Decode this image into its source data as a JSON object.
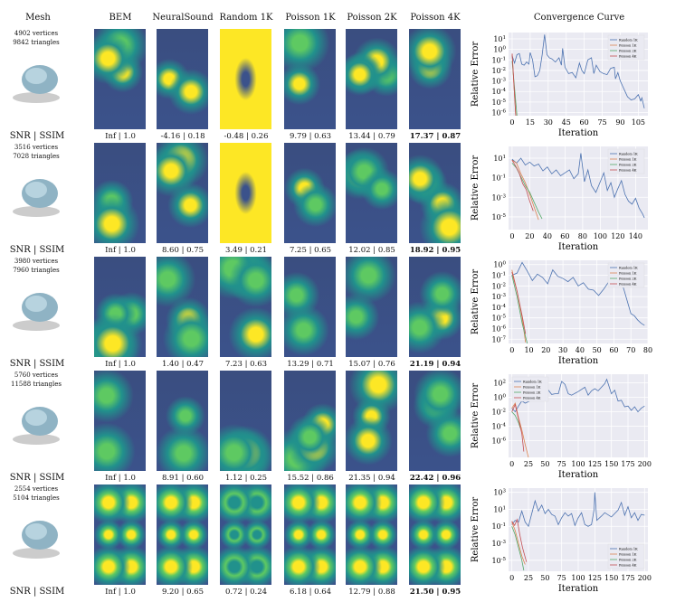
{
  "headers": {
    "mesh": "Mesh",
    "columns": [
      "BEM",
      "NeuralSound",
      "Random 1K",
      "Poisson 1K",
      "Poisson 2K",
      "Poisson 4K"
    ],
    "curve": "Convergence Curve"
  },
  "metric_label": "SNR | SSIM",
  "rows": [
    {
      "vertices": "4902 vertices",
      "triangles": "9842 triangles",
      "metrics": [
        "Inf | 1.0",
        "-4.16 | 0.18",
        "-0.48 | 0.26",
        "9.79 | 0.63",
        "13.44 | 0.79",
        "17.37 | 0.87"
      ]
    },
    {
      "vertices": "3516 vertices",
      "triangles": "7028 triangles",
      "metrics": [
        "Inf | 1.0",
        "8.60 | 0.75",
        "3.49 | 0.21",
        "7.25 | 0.65",
        "12.02 | 0.85",
        "18.92 | 0.95"
      ]
    },
    {
      "vertices": "3980 vertices",
      "triangles": "7960 triangles",
      "metrics": [
        "Inf | 1.0",
        "1.40 | 0.47",
        "7.23 | 0.63",
        "13.29 | 0.71",
        "15.07 | 0.76",
        "21.19 | 0.94"
      ]
    },
    {
      "vertices": "5760 vertices",
      "triangles": "11588 triangles",
      "metrics": [
        "Inf | 1.0",
        "8.91 | 0.60",
        "1.12 | 0.25",
        "15.52 | 0.86",
        "21.35 | 0.94",
        "22.42 | 0.96"
      ]
    },
    {
      "vertices": "2554 vertices",
      "triangles": "5104 triangles",
      "metrics": [
        "Inf | 1.0",
        "9.20 | 0.65",
        "0.72 | 0.24",
        "6.18 | 0.64",
        "12.79 | 0.88",
        "21.50 | 0.95"
      ]
    }
  ],
  "colors": {
    "random": "#4c72b0",
    "p1k": "#dd8452",
    "p2k": "#55a868",
    "p4k": "#c44e52",
    "plot_bg": "#eaeaf2"
  },
  "chart_data": [
    {
      "type": "line",
      "xlabel": "Iteration",
      "ylabel": "Relative Error",
      "yscale": "log",
      "legend": "top-right",
      "xticks": [
        0,
        15,
        30,
        45,
        60,
        75,
        90,
        105
      ],
      "xlim": [
        -3,
        113
      ],
      "yticks": [
        1,
        0,
        -1,
        -2,
        -3,
        -4,
        -5,
        -6
      ],
      "ylim_log10": [
        -6.3,
        1.6
      ],
      "series": [
        {
          "name": "Random 1K",
          "x": [
            0,
            2,
            4,
            6,
            8,
            10,
            12,
            14,
            15,
            17,
            19,
            21,
            23,
            25,
            27,
            29,
            31,
            33,
            36,
            39,
            41,
            42,
            44,
            47,
            50,
            53,
            56,
            58,
            60,
            63,
            66,
            68,
            70,
            73,
            76,
            79,
            82,
            85,
            86,
            88,
            90,
            92,
            94,
            96,
            99,
            102,
            105,
            107,
            108,
            110
          ],
          "y": [
            -0.6,
            -1.3,
            -0.5,
            -0.4,
            -1.4,
            -1.5,
            -1.2,
            -1.4,
            -0.3,
            -1,
            -2.6,
            -2.5,
            -2,
            -0.5,
            1.4,
            -0.5,
            -0.8,
            -0.9,
            -1.2,
            -0.8,
            -1.5,
            0.1,
            -1.7,
            -2.3,
            -2.2,
            -2.7,
            -1.3,
            -2,
            -2.3,
            -1,
            -0.8,
            -2.3,
            -1.5,
            -2.1,
            -2.3,
            -2.4,
            -1.8,
            -1.7,
            -2.8,
            -2.2,
            -3,
            -3.5,
            -4,
            -4.5,
            -4.8,
            -4.7,
            -4.3,
            -4.9,
            -4.6,
            -5.6
          ]
        },
        {
          "name": "Poisson 1K",
          "x": [
            0,
            3
          ],
          "y": [
            -0.5,
            -6.3
          ]
        },
        {
          "name": "Poisson 2K",
          "x": [
            0,
            4
          ],
          "y": [
            -1.1,
            -6.3
          ]
        },
        {
          "name": "Poisson 4K",
          "x": [
            0,
            3
          ],
          "y": [
            -0.4,
            -6.3
          ]
        }
      ]
    },
    {
      "type": "line",
      "xlabel": "Iteration",
      "ylabel": "Relative Error",
      "yscale": "log",
      "legend": "top-right",
      "xticks": [
        0,
        20,
        40,
        60,
        80,
        100,
        120,
        140
      ],
      "xlim": [
        -4,
        154
      ],
      "yticks": [
        1,
        -1,
        -3,
        -5
      ],
      "ylim_log10": [
        -6.3,
        2.2
      ],
      "series": [
        {
          "name": "Random 1K",
          "x": [
            0,
            5,
            10,
            15,
            20,
            25,
            30,
            35,
            40,
            45,
            50,
            55,
            60,
            65,
            70,
            75,
            78,
            82,
            86,
            90,
            95,
            100,
            104,
            108,
            112,
            116,
            120,
            124,
            128,
            132,
            136,
            140,
            144,
            148,
            150
          ],
          "y": [
            0.9,
            0.5,
            1,
            0.3,
            0.6,
            0.2,
            0.4,
            -0.3,
            0.1,
            -0.6,
            -0.2,
            -0.8,
            -0.5,
            -0.2,
            -1.1,
            -0.6,
            1.5,
            -1.4,
            -0.2,
            -1.8,
            -2.5,
            -1.4,
            -0.5,
            -2.3,
            -1.5,
            -3,
            -2.1,
            -1.3,
            -2.7,
            -3.4,
            -3.7,
            -3.1,
            -4.1,
            -4.7,
            -5.1
          ]
        },
        {
          "name": "Poisson 1K",
          "x": [
            0,
            5,
            10,
            15,
            20,
            25,
            30
          ],
          "y": [
            0.8,
            0.5,
            -0.6,
            -1.5,
            -2.7,
            -4,
            -5.3
          ]
        },
        {
          "name": "Poisson 2K",
          "x": [
            0,
            5,
            10,
            15,
            20,
            25,
            30,
            34
          ],
          "y": [
            0.5,
            0,
            -0.9,
            -1.8,
            -2.5,
            -3.5,
            -4.5,
            -5.2
          ]
        },
        {
          "name": "Poisson 4K",
          "x": [
            0,
            4,
            8,
            12,
            16,
            20,
            24
          ],
          "y": [
            0.8,
            0.2,
            -0.5,
            -1.6,
            -2.2,
            -3.4,
            -4.4
          ]
        }
      ]
    },
    {
      "type": "line",
      "xlabel": "Iteration",
      "ylabel": "Relative Error",
      "yscale": "log",
      "legend": "top-right",
      "xticks": [
        0,
        10,
        20,
        30,
        40,
        50,
        60,
        70,
        80
      ],
      "xlim": [
        -2,
        80
      ],
      "yticks": [
        0,
        -1,
        -2,
        -3,
        -4,
        -5,
        -6,
        -7
      ],
      "ylim_log10": [
        -7.4,
        0.4
      ],
      "series": [
        {
          "name": "Random 1K",
          "x": [
            0,
            3,
            6,
            9,
            12,
            15,
            18,
            21,
            24,
            27,
            30,
            33,
            36,
            39,
            42,
            45,
            48,
            51,
            54,
            57,
            60,
            62,
            64,
            66,
            68,
            70,
            72,
            74,
            76,
            78
          ],
          "y": [
            -1,
            -0.8,
            0.2,
            -0.6,
            -1.5,
            -0.9,
            -1.2,
            -1.8,
            -0.5,
            -1.1,
            -1.3,
            -1.6,
            -1.2,
            -2,
            -1.7,
            -2.3,
            -2.4,
            -2.9,
            -2.3,
            -1.6,
            -1.2,
            -1.9,
            -1.4,
            -2.4,
            -3.5,
            -4.6,
            -4.8,
            -5.2,
            -5.5,
            -5.7
          ]
        },
        {
          "name": "Poisson 1K",
          "x": [
            0,
            3,
            6,
            8
          ],
          "y": [
            -0.5,
            -2.5,
            -5,
            -7.3
          ]
        },
        {
          "name": "Poisson 2K",
          "x": [
            0,
            3,
            6,
            9
          ],
          "y": [
            -1,
            -3,
            -5.5,
            -7.4
          ]
        },
        {
          "name": "Poisson 4K",
          "x": [
            0,
            3,
            6,
            8
          ],
          "y": [
            -0.7,
            -2.5,
            -4.8,
            -6.5
          ]
        }
      ]
    },
    {
      "type": "line",
      "xlabel": "Iteration",
      "ylabel": "Relative Error",
      "yscale": "log",
      "legend": "top-left",
      "xticks": [
        0,
        25,
        50,
        75,
        100,
        125,
        150,
        175,
        200
      ],
      "xlim": [
        -5,
        205
      ],
      "yticks": [
        2,
        0,
        -2,
        -4,
        -6
      ],
      "ylim_log10": [
        -8.3,
        3.2
      ],
      "series": [
        {
          "name": "Random 1K",
          "x": [
            0,
            5,
            10,
            15,
            20,
            25,
            30,
            40,
            50,
            55,
            60,
            65,
            70,
            75,
            80,
            85,
            90,
            100,
            110,
            115,
            120,
            125,
            130,
            140,
            143,
            150,
            155,
            160,
            165,
            170,
            175,
            180,
            185,
            190,
            195,
            200
          ],
          "y": [
            -1.5,
            -2,
            -1.2,
            -0.5,
            -0.8,
            -0.6,
            -0.3,
            -0.5,
            -0.2,
            1,
            0.4,
            0.5,
            0.5,
            2.2,
            1.8,
            0.5,
            0.3,
            0.8,
            1.4,
            0.3,
            0.9,
            1.2,
            0.9,
            1.9,
            2.5,
            0.5,
            1,
            -0.5,
            -0.4,
            -1.3,
            -1.2,
            -1.8,
            -1.3,
            -2,
            -1.5,
            -1.2
          ]
        },
        {
          "name": "Poisson 1K",
          "x": [
            0,
            5,
            10,
            15,
            20,
            25
          ],
          "y": [
            -1.5,
            -0.8,
            -2.8,
            -4.5,
            -6.5,
            -8.3
          ]
        },
        {
          "name": "Poisson 2K",
          "x": [
            0,
            5,
            10,
            13
          ],
          "y": [
            -2,
            -2.5,
            -3.5,
            -4.3
          ]
        },
        {
          "name": "Poisson 4K",
          "x": [
            0,
            5,
            10,
            15,
            18
          ],
          "y": [
            -2,
            -1,
            -3,
            -5,
            -7.5
          ]
        }
      ]
    },
    {
      "type": "line",
      "xlabel": "Iteration",
      "ylabel": "Relative Error",
      "yscale": "log",
      "legend": "bottom-right",
      "xticks": [
        0,
        25,
        50,
        75,
        100,
        125,
        150,
        175,
        200
      ],
      "xlim": [
        -5,
        205
      ],
      "yticks": [
        3,
        1,
        -1,
        -3,
        -5
      ],
      "ylim_log10": [
        -6.3,
        3.5
      ],
      "series": [
        {
          "name": "Random 1K",
          "x": [
            0,
            5,
            10,
            15,
            20,
            25,
            30,
            35,
            40,
            45,
            50,
            55,
            60,
            65,
            70,
            75,
            80,
            85,
            90,
            95,
            100,
            105,
            110,
            115,
            120,
            124,
            125,
            128,
            135,
            140,
            150,
            160,
            165,
            170,
            175,
            180,
            185,
            190,
            195,
            200
          ],
          "y": [
            -0.8,
            -0.3,
            -0.5,
            0.8,
            -0.5,
            -1,
            0.5,
            2,
            0.8,
            1.5,
            0.5,
            1,
            0.4,
            0.2,
            -0.8,
            0,
            0.6,
            0.2,
            0.5,
            -0.9,
            0,
            0.6,
            -0.8,
            -1,
            -0.8,
            1,
            3,
            -0.3,
            0.2,
            0.6,
            0.1,
            0.9,
            1.8,
            0.3,
            1.3,
            0,
            0.6,
            -0.3,
            0.4,
            0.3
          ]
        },
        {
          "name": "Poisson 1K",
          "x": [
            0,
            5,
            10,
            15,
            20
          ],
          "y": [
            -0.5,
            -1.5,
            -3,
            -4.5,
            -5.5
          ]
        },
        {
          "name": "Poisson 2K",
          "x": [
            0,
            5,
            10,
            15,
            18
          ],
          "y": [
            -1,
            -2,
            -3.5,
            -5,
            -6.2
          ]
        },
        {
          "name": "Poisson 4K",
          "x": [
            0,
            4,
            8,
            12,
            16,
            22
          ],
          "y": [
            -0.4,
            -0.9,
            -0.2,
            -2,
            -3.5,
            -5.2
          ]
        }
      ]
    }
  ]
}
